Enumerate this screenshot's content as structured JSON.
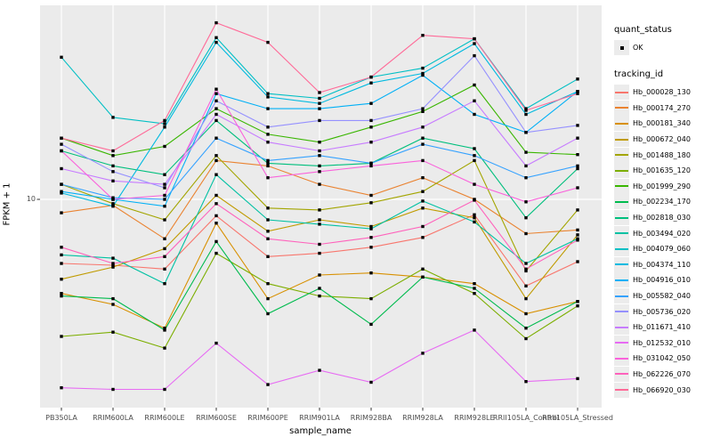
{
  "chart_data": {
    "type": "line",
    "title": "",
    "xlabel": "sample_name",
    "ylabel": "FPKM + 1",
    "y_scale": "log10",
    "y_tick_label": "10",
    "y_tick_value": 10,
    "ylim": [
      0.93,
      105
    ],
    "grid": "major-only",
    "legend_position": "right",
    "point_shape": "small-black-square",
    "panel_bg": "#EBEBEB",
    "grid_color": "#FFFFFF",
    "axis_text_color": "#4D4D4D",
    "categories": [
      "PB350LA",
      "RRIM600LA",
      "RRIM600LE",
      "RRIM600SE",
      "RRIM600PE",
      "RRIM901LA",
      "RRIM928BA",
      "RRIM928LA",
      "RRIM928LE",
      "RRII105LA_Control",
      "RRII105LA_Stressed"
    ],
    "quant_legend": {
      "title": "quant_status",
      "items": [
        "OK"
      ]
    },
    "tracking_legend_title": "tracking_id",
    "series": [
      {
        "name": "Hb_000028_130",
        "color": "#F8766D",
        "values": [
          4.6,
          4.5,
          4.3,
          8.2,
          5.0,
          5.2,
          5.6,
          6.3,
          8.3,
          3.5,
          4.7
        ]
      },
      {
        "name": "Hb_000174_270",
        "color": "#EA8331",
        "values": [
          8.5,
          9.3,
          6.2,
          16,
          15,
          12,
          10.5,
          13,
          10,
          6.6,
          6.9
        ]
      },
      {
        "name": "Hb_000181_340",
        "color": "#D89000",
        "values": [
          3.2,
          2.8,
          2.1,
          7.5,
          3.0,
          4.0,
          4.1,
          3.9,
          3.6,
          2.5,
          2.9
        ]
      },
      {
        "name": "Hb_000672_040",
        "color": "#C09B00",
        "values": [
          3.8,
          4.4,
          5.5,
          10.5,
          6.8,
          7.8,
          7.2,
          9.0,
          8.0,
          3.0,
          6.5
        ]
      },
      {
        "name": "Hb_001488_180",
        "color": "#A3A500",
        "values": [
          12,
          9.5,
          7.8,
          17,
          9.0,
          8.8,
          9.6,
          11,
          16,
          4.2,
          8.8
        ]
      },
      {
        "name": "Hb_001635_120",
        "color": "#7CAE00",
        "values": [
          1.9,
          2.0,
          1.65,
          5.2,
          3.6,
          3.1,
          3.0,
          4.3,
          3.2,
          1.85,
          2.75
        ]
      },
      {
        "name": "Hb_001999_290",
        "color": "#39B600",
        "values": [
          21,
          17,
          19,
          30,
          22,
          20,
          24,
          29,
          40,
          17.7,
          17.2
        ]
      },
      {
        "name": "Hb_002234_170",
        "color": "#00BB4E",
        "values": [
          3.1,
          3.0,
          2.05,
          6.0,
          2.5,
          3.4,
          2.2,
          3.9,
          3.4,
          2.1,
          2.9
        ]
      },
      {
        "name": "Hb_002818_030",
        "color": "#00BF7D",
        "values": [
          18,
          15,
          13.5,
          26,
          15.5,
          15,
          15.5,
          21,
          18.5,
          8.0,
          14.5
        ]
      },
      {
        "name": "Hb_003494_020",
        "color": "#00C1A3",
        "values": [
          5.1,
          4.9,
          3.6,
          13.5,
          7.8,
          7.4,
          7.0,
          9.8,
          7.6,
          4.6,
          6.2
        ]
      },
      {
        "name": "Hb_004079_060",
        "color": "#00BFC4",
        "values": [
          56,
          27,
          25,
          71,
          36,
          34,
          44,
          49,
          70,
          30,
          43
        ]
      },
      {
        "name": "Hb_004374_110",
        "color": "#00BAE0",
        "values": [
          10.8,
          9.2,
          24,
          67,
          34.6,
          32,
          41,
          46,
          66,
          28,
          37
        ]
      },
      {
        "name": "Hb_004916_010",
        "color": "#00B0F6",
        "values": [
          11,
          10,
          9.2,
          36,
          30,
          30,
          32,
          45,
          28,
          22.5,
          37
        ]
      },
      {
        "name": "Hb_005582_040",
        "color": "#35A2FF",
        "values": [
          12,
          10.2,
          10.0,
          21,
          16,
          17,
          15.5,
          19.5,
          17,
          13,
          15
        ]
      },
      {
        "name": "Hb_005736_020",
        "color": "#9590FF",
        "values": [
          19.5,
          14,
          11.5,
          33,
          24,
          26,
          26,
          30,
          57,
          22.5,
          24.5
        ]
      },
      {
        "name": "Hb_011671_410",
        "color": "#C77CFF",
        "values": [
          14.5,
          12.5,
          12,
          28,
          20,
          18,
          20,
          24,
          33,
          15,
          21
        ]
      },
      {
        "name": "Hb_012532_010",
        "color": "#E76BF3",
        "values": [
          1.02,
          1.0,
          1.0,
          1.75,
          1.06,
          1.26,
          1.09,
          1.55,
          2.05,
          1.1,
          1.14
        ]
      },
      {
        "name": "Hb_031042_050",
        "color": "#FA62DB",
        "values": [
          18,
          10,
          10.5,
          38,
          13,
          14,
          15,
          16,
          12,
          9.7,
          11.5
        ]
      },
      {
        "name": "Hb_062226_070",
        "color": "#FF62BC",
        "values": [
          5.6,
          4.6,
          5.0,
          9.5,
          6.2,
          5.8,
          6.3,
          7.2,
          9.9,
          4.3,
          6.1
        ]
      },
      {
        "name": "Hb_066920_030",
        "color": "#FF6A98",
        "values": [
          21,
          18,
          26,
          85,
          67,
          36.5,
          44,
          73,
          70,
          29.4,
          36
        ]
      }
    ]
  }
}
